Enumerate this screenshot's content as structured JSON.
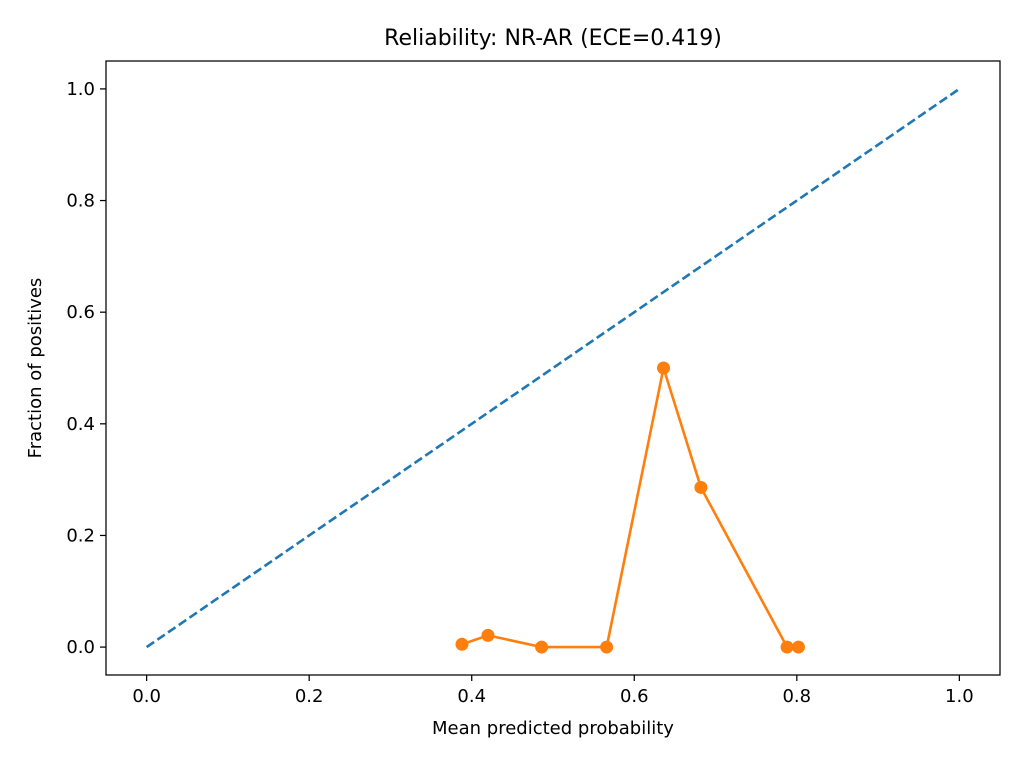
{
  "chart_data": {
    "type": "line",
    "title": "Reliability: NR-AR (ECE=0.419)",
    "xlabel": "Mean predicted probability",
    "ylabel": "Fraction of positives",
    "xlim": [
      -0.05,
      1.05
    ],
    "ylim": [
      -0.05,
      1.05
    ],
    "xticks": [
      0.0,
      0.2,
      0.4,
      0.6,
      0.8,
      1.0
    ],
    "xtick_labels": [
      "0.0",
      "0.2",
      "0.4",
      "0.6",
      "0.8",
      "1.0"
    ],
    "yticks": [
      0.0,
      0.2,
      0.4,
      0.6,
      0.8,
      1.0
    ],
    "ytick_labels": [
      "0.0",
      "0.2",
      "0.4",
      "0.6",
      "0.8",
      "1.0"
    ],
    "grid": false,
    "legend": "none",
    "series": [
      {
        "style": "dashed",
        "color": "#1f77b4",
        "x": [
          0.0,
          1.0
        ],
        "y": [
          0.0,
          1.0
        ]
      },
      {
        "style": "line-markers",
        "color": "#ff7f0e",
        "x": [
          0.388,
          0.42,
          0.486,
          0.566,
          0.636,
          0.682,
          0.788,
          0.802
        ],
        "y": [
          0.005,
          0.021,
          0.0,
          0.0,
          0.5,
          0.286,
          0.0,
          0.0
        ]
      }
    ]
  }
}
